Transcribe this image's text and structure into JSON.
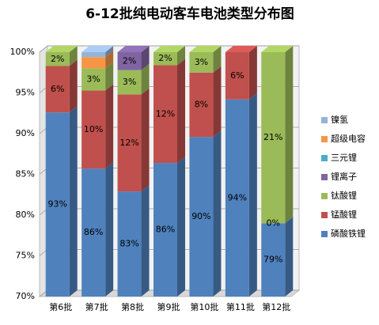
{
  "chart_data": {
    "type": "stacked-bar-3d",
    "title": "6-12批纯电动客车电池类型分布图",
    "categories": [
      "第6批",
      "第7批",
      "第8批",
      "第9批",
      "第10批",
      "第11批",
      "第12批"
    ],
    "series": [
      {
        "name": "磷酸铁锂",
        "color": "#4f81bd",
        "values": [
          92.6,
          85.7,
          82.9,
          86.4,
          89.6,
          94.2,
          79.0
        ],
        "value_labels": [
          "93%",
          "86%",
          "83%",
          "86%",
          "90%",
          "94%",
          "79%"
        ]
      },
      {
        "name": "锰酸锂",
        "color": "#c0504d",
        "values": [
          5.7,
          9.6,
          11.9,
          12.0,
          7.9,
          5.8,
          0
        ],
        "value_labels": [
          "6%",
          "10%",
          "12%",
          "12%",
          "8%",
          "6%",
          "0%"
        ]
      },
      {
        "name": "钛酸锂",
        "color": "#9bbb59",
        "values": [
          1.7,
          2.7,
          3.0,
          1.6,
          2.5,
          null,
          21.0
        ],
        "value_labels": [
          "2%",
          "3%",
          "3%",
          "2%",
          "3%",
          null,
          "21%"
        ]
      },
      {
        "name": "锂离子",
        "color": "#8064a2",
        "values": [
          null,
          null,
          2.2,
          null,
          null,
          null,
          null
        ],
        "value_labels": [
          null,
          null,
          "2%",
          null,
          null,
          null,
          null
        ]
      },
      {
        "name": "三元锂",
        "color": "#4bacc6",
        "values": [
          null,
          null,
          null,
          null,
          null,
          null,
          null
        ],
        "value_labels": [
          null,
          null,
          null,
          null,
          null,
          null,
          null
        ]
      },
      {
        "name": "超级电容",
        "color": "#f79646",
        "values": [
          null,
          1.4,
          null,
          null,
          null,
          null,
          null
        ],
        "value_labels": [
          null,
          null,
          null,
          null,
          null,
          null,
          null
        ]
      },
      {
        "name": "镍氢",
        "color": "#95b3d7",
        "values": [
          null,
          0.6,
          null,
          null,
          null,
          null,
          null
        ],
        "value_labels": [
          null,
          null,
          null,
          null,
          null,
          null,
          null
        ]
      }
    ],
    "ylim": [
      70,
      100
    ],
    "yticks": [
      {
        "value": 70,
        "label": "70%"
      },
      {
        "value": 75,
        "label": "75%"
      },
      {
        "value": 80,
        "label": "80%"
      },
      {
        "value": 85,
        "label": "85%"
      },
      {
        "value": 90,
        "label": "90%"
      },
      {
        "value": 95,
        "label": "95%"
      },
      {
        "value": 100,
        "label": "100%"
      }
    ],
    "grid": true
  }
}
